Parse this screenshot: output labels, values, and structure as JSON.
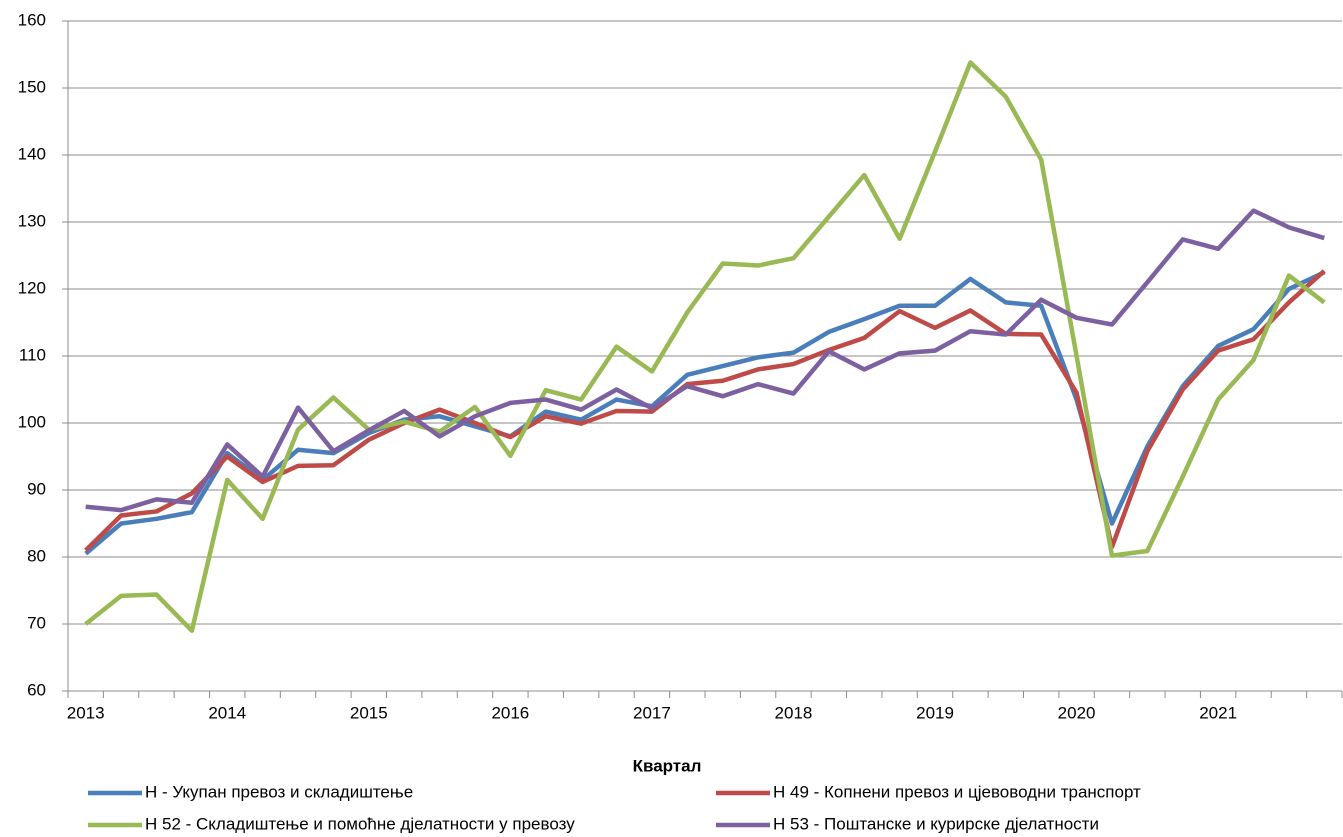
{
  "chart_data": {
    "type": "line",
    "x_label": "Квартал",
    "categories": [
      "2013",
      null,
      null,
      null,
      "2014",
      null,
      null,
      null,
      "2015",
      null,
      null,
      null,
      "2016",
      null,
      null,
      null,
      "2017",
      null,
      null,
      null,
      "2018",
      null,
      null,
      null,
      "2019",
      null,
      null,
      null,
      "2020",
      null,
      null,
      null,
      "2021",
      null,
      null,
      null
    ],
    "series": [
      {
        "name": "Н - Укупан превоз и складиштење",
        "color": "#4a7ebb",
        "values": [
          80.5,
          85,
          85.7,
          86.7,
          95.5,
          91.5,
          96,
          95.5,
          98.5,
          100.5,
          101,
          99.5,
          98,
          101.7,
          100.5,
          103.5,
          102.5,
          107.2,
          108.5,
          109.8,
          110.5,
          113.6,
          115.5,
          117.5,
          117.5,
          121.5,
          118,
          117.5,
          103.5,
          85,
          96.5,
          105.5,
          111.5,
          114,
          120,
          122.5
        ]
      },
      {
        "name": "Н 49 - Копнени превоз и цјевоводни транспорт",
        "color": "#be4b48",
        "values": [
          81,
          86.2,
          86.8,
          89.5,
          95,
          91.2,
          93.6,
          93.7,
          97.5,
          100,
          102,
          100,
          97.9,
          101,
          99.9,
          101.8,
          101.7,
          105.8,
          106.3,
          108,
          108.8,
          110.9,
          112.7,
          116.7,
          114.2,
          116.8,
          113.3,
          113.2,
          104.5,
          81.5,
          95.8,
          105,
          110.8,
          112.5,
          118,
          122.7
        ]
      },
      {
        "name": "Н 52 - Складиштење и помоћне дјелатности у превозу",
        "color": "#98b954",
        "values": [
          70,
          74.2,
          74.4,
          69,
          91.5,
          85.7,
          99,
          103.8,
          99,
          100.2,
          98.7,
          102.4,
          95.1,
          104.9,
          103.5,
          111.4,
          107.7,
          116.5,
          123.8,
          123.5,
          124.6,
          130.8,
          137,
          127.5,
          140.5,
          153.8,
          148.7,
          139.3,
          110,
          80.2,
          80.9,
          92,
          103.5,
          109.4,
          122,
          118
        ]
      },
      {
        "name": "Н 53 - Поштанске и курирске дјелатности",
        "color": "#7d60a0",
        "values": [
          87.5,
          87,
          88.6,
          88.1,
          96.8,
          92,
          102.3,
          95.8,
          98.9,
          101.8,
          98,
          101,
          103,
          103.5,
          102,
          105,
          102.2,
          105.5,
          104,
          105.8,
          104.4,
          110.7,
          108,
          110.4,
          110.8,
          113.7,
          113.2,
          118.4,
          115.7,
          114.7,
          121,
          127.4,
          126,
          131.7,
          129.2,
          127.6
        ]
      }
    ],
    "ylim": [
      60,
      160
    ],
    "yticks": [
      60,
      70,
      80,
      90,
      100,
      110,
      120,
      130,
      140,
      150,
      160
    ],
    "grid": true,
    "legend": "bottom"
  }
}
